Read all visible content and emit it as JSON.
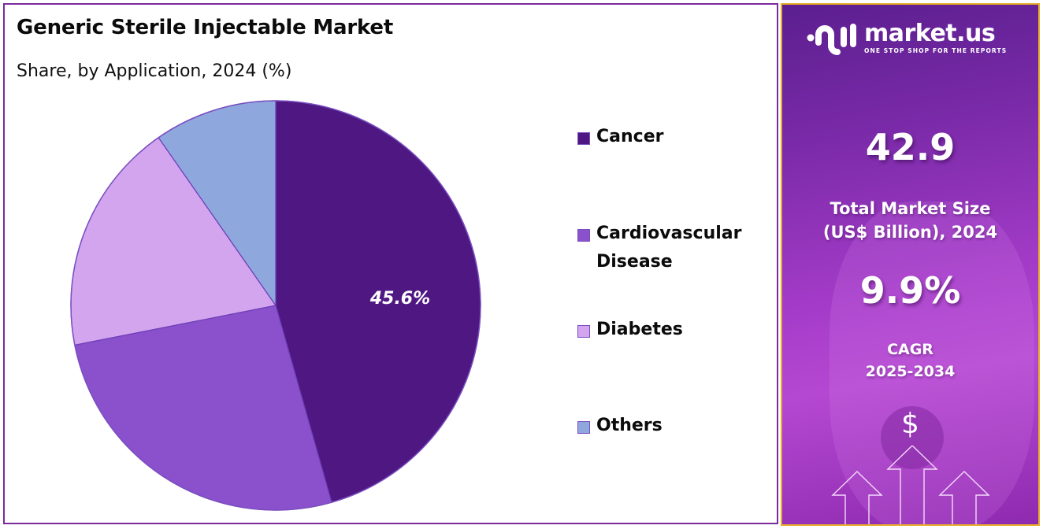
{
  "chart": {
    "title": "Generic Sterile Injectable Market",
    "subtitle": "Share, by Application, 2024 (%)",
    "highlight_label": "45.6%"
  },
  "legend": {
    "items": [
      {
        "label": "Cancer",
        "color": "#4e1782"
      },
      {
        "label": "Cardiovascular Disease",
        "label_line1": "Cardiovascular",
        "label_line2": "Disease",
        "color": "#8b50cc"
      },
      {
        "label": "Diabetes",
        "color": "#d3a5ef"
      },
      {
        "label": "Others",
        "color": "#8ea7dd"
      }
    ]
  },
  "info_panel": {
    "brand": {
      "name": "market.us",
      "tagline": "ONE STOP SHOP FOR THE REPORTS"
    },
    "market_size": {
      "value": "42.9",
      "caption_line1": "Total Market Size",
      "caption_line2": "(US$ Billion), 2024"
    },
    "cagr": {
      "value": "9.9%",
      "caption_line1": "CAGR",
      "caption_line2": "2025-2034"
    },
    "icon_symbol": "$",
    "colors": {
      "border": "#e7ad2a",
      "panel_top": "#5b1f8f",
      "panel_mid": "#b548d2"
    }
  },
  "chart_data": {
    "type": "pie",
    "title": "Generic Sterile Injectable Market",
    "subtitle": "Share, by Application, 2024 (%)",
    "categories": [
      "Cancer",
      "Cardiovascular Disease",
      "Diabetes",
      "Others"
    ],
    "values": [
      45.6,
      26.3,
      18.4,
      9.7
    ],
    "colors": [
      "#4e1782",
      "#8b50cc",
      "#d3a5ef",
      "#8ea7dd"
    ],
    "labeled_values": {
      "Cancer": 45.6
    },
    "start_angle_deg": 0,
    "direction": "clockwise",
    "legend_position": "right",
    "units": "%"
  }
}
